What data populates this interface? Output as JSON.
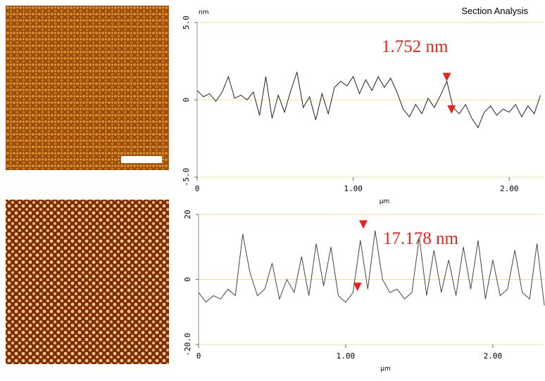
{
  "chart_data": [
    {
      "type": "line",
      "title": "Section Analysis",
      "x_label": "µm",
      "y_label": "nm",
      "annotation": "1.752 nm",
      "xlim": [
        0,
        2.22
      ],
      "ylim": [
        -5,
        5
      ],
      "xticks": [
        0,
        {
          "value": 1,
          "label": "1.00"
        },
        {
          "value": 2,
          "label": "2.00"
        }
      ],
      "yticks": [
        {
          "value": -5,
          "label": "-5.0"
        },
        0,
        {
          "value": 5,
          "label": "5.0"
        }
      ],
      "grid": true,
      "grid_color": "#f0e68c",
      "x": [
        0,
        0.04,
        0.08,
        0.12,
        0.16,
        0.2,
        0.24,
        0.28,
        0.32,
        0.36,
        0.4,
        0.44,
        0.48,
        0.52,
        0.56,
        0.6,
        0.64,
        0.68,
        0.72,
        0.76,
        0.8,
        0.84,
        0.88,
        0.92,
        0.96,
        1.0,
        1.04,
        1.08,
        1.12,
        1.16,
        1.2,
        1.24,
        1.28,
        1.32,
        1.36,
        1.4,
        1.44,
        1.48,
        1.52,
        1.56,
        1.6,
        1.64,
        1.68,
        1.72,
        1.76,
        1.8,
        1.84,
        1.88,
        1.92,
        1.96,
        2.0,
        2.04,
        2.08,
        2.12,
        2.16,
        2.2
      ],
      "series": [
        {
          "color": "#222222",
          "values": [
            0.6,
            0.2,
            0.4,
            -0.1,
            0.5,
            1.5,
            0.1,
            0.3,
            0.0,
            0.5,
            -1.0,
            1.5,
            -1.2,
            0.3,
            -0.8,
            0.6,
            1.8,
            -0.5,
            0.2,
            -1.3,
            0.4,
            -0.9,
            0.8,
            1.2,
            0.9,
            1.5,
            0.4,
            1.3,
            0.6,
            1.5,
            0.8,
            1.4,
            0.5,
            -0.6,
            -1.1,
            -0.3,
            -0.9,
            0.1,
            -0.5,
            0.3,
            1.2,
            -0.5,
            -0.9,
            -0.3,
            -1.2,
            -1.8,
            -0.8,
            -0.4,
            -1.0,
            -0.6,
            -0.8,
            -0.3,
            -1.1,
            -0.4,
            -0.9,
            0.3
          ]
        }
      ],
      "cursors": [
        {
          "x": 1.6,
          "y": 1.2
        },
        {
          "x": 1.63,
          "y": -0.9
        }
      ],
      "cursor_color": "#e8241a"
    },
    {
      "type": "line",
      "x_label": "µm",
      "annotation": "17.178 nm",
      "xlim": [
        0,
        2.35
      ],
      "ylim": [
        -20,
        20
      ],
      "xticks": [
        0,
        {
          "value": 1,
          "label": "1.00"
        },
        {
          "value": 2,
          "label": "2.00"
        }
      ],
      "yticks": [
        {
          "value": -20,
          "label": "-20.0"
        },
        0,
        20
      ],
      "grid": true,
      "grid_color": "#f0e68c",
      "x": [
        0,
        0.05,
        0.1,
        0.15,
        0.2,
        0.25,
        0.3,
        0.35,
        0.4,
        0.45,
        0.5,
        0.55,
        0.6,
        0.65,
        0.7,
        0.75,
        0.8,
        0.85,
        0.9,
        0.95,
        1.0,
        1.05,
        1.1,
        1.15,
        1.2,
        1.25,
        1.3,
        1.35,
        1.4,
        1.45,
        1.5,
        1.55,
        1.6,
        1.65,
        1.7,
        1.75,
        1.8,
        1.85,
        1.9,
        1.95,
        2.0,
        2.05,
        2.1,
        2.15,
        2.2,
        2.25,
        2.3,
        2.35
      ],
      "series": [
        {
          "color": "#444444",
          "values": [
            -4,
            -7,
            -5,
            -6,
            -3,
            -5,
            14,
            2,
            -5,
            -3,
            5,
            -6,
            0,
            -4,
            7,
            -5,
            11,
            -2,
            10,
            -5,
            -7,
            -4,
            12,
            -3,
            15,
            0,
            -4,
            -3,
            -6,
            -4,
            13,
            -5,
            9,
            -4,
            6,
            -5,
            10,
            -3,
            12,
            -6,
            6,
            -5,
            -3,
            9,
            -4,
            -6,
            11,
            -8
          ]
        }
      ],
      "cursors": [
        {
          "x": 1.12,
          "y": 15.6
        },
        {
          "x": 1.08,
          "y": -3.6
        }
      ],
      "cursor_color": "#e8241a"
    }
  ]
}
